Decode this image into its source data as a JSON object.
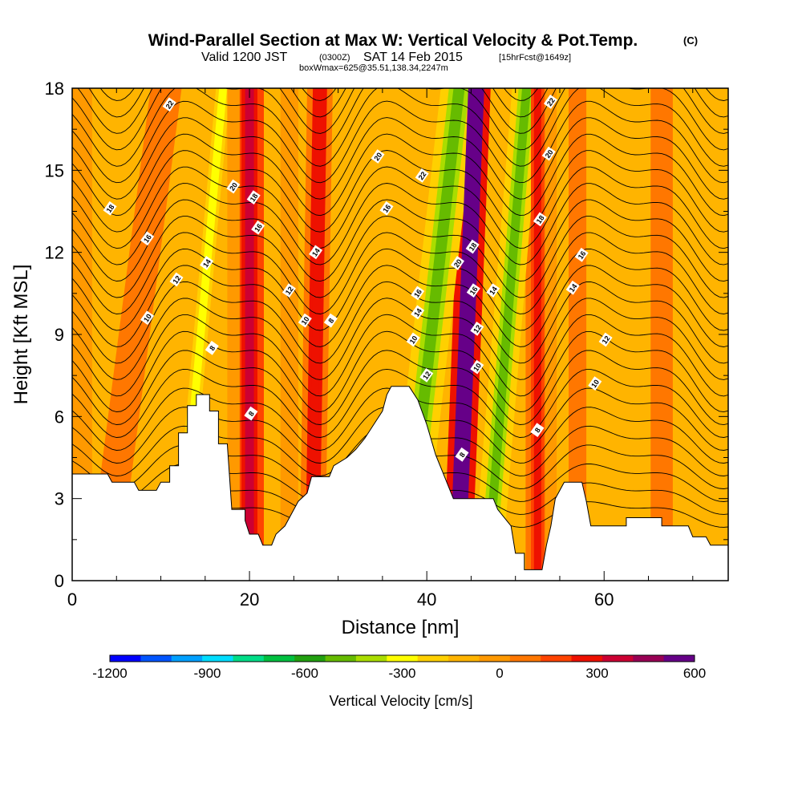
{
  "title": {
    "main": "Wind-Parallel Section at Max W: Vertical Velocity & Pot.Temp.",
    "copyright": "(C)",
    "line2_a": "Valid 1200 JST",
    "line2_b": "(0300Z)",
    "line2_c": "SAT 14 Feb 2015",
    "line2_d": "[15hrFcst@1649z]",
    "line3": "boxWmax=625@35.51,138.34,2247m"
  },
  "chart_data": {
    "type": "heatmap",
    "xlabel": "Distance [nm]",
    "ylabel": "Height [Kft MSL]",
    "xlim": [
      0,
      74
    ],
    "ylim": [
      0,
      18
    ],
    "x_ticks": [
      0,
      20,
      40,
      60
    ],
    "y_ticks": [
      0,
      3,
      6,
      9,
      12,
      15,
      18
    ],
    "x_minor_step": 5,
    "y_minor_step": 1.5,
    "grid": false,
    "terrain_height_kft": [
      {
        "x": 0,
        "h": 3.9
      },
      {
        "x": 4,
        "h": 3.9
      },
      {
        "x": 4.5,
        "h": 3.6
      },
      {
        "x": 7,
        "h": 3.6
      },
      {
        "x": 7.5,
        "h": 3.3
      },
      {
        "x": 9.5,
        "h": 3.3
      },
      {
        "x": 10,
        "h": 3.6
      },
      {
        "x": 11,
        "h": 3.6
      },
      {
        "x": 11,
        "h": 4.2
      },
      {
        "x": 12,
        "h": 4.2
      },
      {
        "x": 12,
        "h": 5.4
      },
      {
        "x": 13,
        "h": 5.4
      },
      {
        "x": 13,
        "h": 6.4
      },
      {
        "x": 14,
        "h": 6.4
      },
      {
        "x": 14,
        "h": 6.8
      },
      {
        "x": 15.5,
        "h": 6.8
      },
      {
        "x": 15.5,
        "h": 6.2
      },
      {
        "x": 16.5,
        "h": 6.2
      },
      {
        "x": 16.5,
        "h": 5.0
      },
      {
        "x": 17.5,
        "h": 5.0
      },
      {
        "x": 18,
        "h": 2.6
      },
      {
        "x": 19.5,
        "h": 2.6
      },
      {
        "x": 19.5,
        "h": 2.2
      },
      {
        "x": 20,
        "h": 1.7
      },
      {
        "x": 21,
        "h": 1.7
      },
      {
        "x": 21.5,
        "h": 1.3
      },
      {
        "x": 22.5,
        "h": 1.3
      },
      {
        "x": 23,
        "h": 1.7
      },
      {
        "x": 24,
        "h": 2.0
      },
      {
        "x": 25,
        "h": 2.6
      },
      {
        "x": 25.5,
        "h": 2.9
      },
      {
        "x": 26.5,
        "h": 3.2
      },
      {
        "x": 27,
        "h": 3.8
      },
      {
        "x": 29,
        "h": 3.8
      },
      {
        "x": 29.5,
        "h": 4.2
      },
      {
        "x": 31,
        "h": 4.5
      },
      {
        "x": 32,
        "h": 4.8
      },
      {
        "x": 33,
        "h": 5.2
      },
      {
        "x": 34,
        "h": 5.7
      },
      {
        "x": 35,
        "h": 6.2
      },
      {
        "x": 35.5,
        "h": 6.8
      },
      {
        "x": 36,
        "h": 7.1
      },
      {
        "x": 38,
        "h": 7.1
      },
      {
        "x": 39,
        "h": 6.6
      },
      {
        "x": 40,
        "h": 5.7
      },
      {
        "x": 41,
        "h": 4.6
      },
      {
        "x": 42,
        "h": 3.8
      },
      {
        "x": 43,
        "h": 3.0
      },
      {
        "x": 47.5,
        "h": 3.0
      },
      {
        "x": 48,
        "h": 2.6
      },
      {
        "x": 49.5,
        "h": 2.0
      },
      {
        "x": 50,
        "h": 1.0
      },
      {
        "x": 51,
        "h": 1.0
      },
      {
        "x": 51,
        "h": 0.4
      },
      {
        "x": 53,
        "h": 0.4
      },
      {
        "x": 53.5,
        "h": 1.3
      },
      {
        "x": 54,
        "h": 2.0
      },
      {
        "x": 54.5,
        "h": 3.0
      },
      {
        "x": 55.5,
        "h": 3.6
      },
      {
        "x": 57.5,
        "h": 3.6
      },
      {
        "x": 58,
        "h": 2.9
      },
      {
        "x": 58.5,
        "h": 2.0
      },
      {
        "x": 62.5,
        "h": 2.0
      },
      {
        "x": 62.5,
        "h": 2.3
      },
      {
        "x": 66.5,
        "h": 2.3
      },
      {
        "x": 66.5,
        "h": 2.0
      },
      {
        "x": 69.5,
        "h": 2.0
      },
      {
        "x": 70,
        "h": 1.6
      },
      {
        "x": 71.5,
        "h": 1.6
      },
      {
        "x": 72,
        "h": 1.3
      },
      {
        "x": 74,
        "h": 1.3
      }
    ],
    "vertical_velocity_bands": [
      {
        "x_center": 1,
        "slope": 0.0,
        "width": 2.5,
        "w": 30
      },
      {
        "x_center": 7,
        "slope": 0.4,
        "width": 3.5,
        "w": 60
      },
      {
        "x_center": 14.5,
        "slope": 0.28,
        "width": 1.6,
        "w": -220
      },
      {
        "x_center": 18.2,
        "slope": 0.0,
        "width": 1.4,
        "w": -60
      },
      {
        "x_center": 20.0,
        "slope": 0.0,
        "width": 1.8,
        "w": 300
      },
      {
        "x_center": 24.5,
        "slope": 0.0,
        "width": 2.0,
        "w": -60
      },
      {
        "x_center": 27.5,
        "slope": 0.05,
        "width": 1.6,
        "w": 250
      },
      {
        "x_center": 31.5,
        "slope": 0.1,
        "width": 2.5,
        "w": -130
      },
      {
        "x_center": 40.5,
        "slope": 0.35,
        "width": 2.3,
        "w": -420
      },
      {
        "x_center": 44.5,
        "slope": 0.12,
        "width": 1.8,
        "w": 620
      },
      {
        "x_center": 49.0,
        "slope": 0.25,
        "width": 1.8,
        "w": -380
      },
      {
        "x_center": 52.5,
        "slope": 0.0,
        "width": 1.5,
        "w": 180
      },
      {
        "x_center": 54.0,
        "slope": 0.0,
        "width": 1.3,
        "w": -40
      },
      {
        "x_center": 57.0,
        "slope": 0.0,
        "width": 2.0,
        "w": 60
      },
      {
        "x_center": 61.0,
        "slope": 0.0,
        "width": 1.5,
        "w": -80
      },
      {
        "x_center": 66.5,
        "slope": 0.0,
        "width": 2.5,
        "w": 70
      },
      {
        "x_center": 71.5,
        "slope": 0.0,
        "width": 1.5,
        "w": -80
      }
    ],
    "isentrope_labels": [
      {
        "x": 11,
        "y": 17.4,
        "value": "22"
      },
      {
        "x": 4.3,
        "y": 13.6,
        "value": "18"
      },
      {
        "x": 8.5,
        "y": 12.5,
        "value": "16"
      },
      {
        "x": 18.2,
        "y": 14.4,
        "value": "20"
      },
      {
        "x": 20.5,
        "y": 14.0,
        "value": "18"
      },
      {
        "x": 21.0,
        "y": 12.9,
        "value": "16"
      },
      {
        "x": 15.2,
        "y": 11.6,
        "value": "14"
      },
      {
        "x": 11.8,
        "y": 11.0,
        "value": "12"
      },
      {
        "x": 8.5,
        "y": 9.6,
        "value": "10"
      },
      {
        "x": 15.8,
        "y": 8.5,
        "value": "8"
      },
      {
        "x": 20.2,
        "y": 6.1,
        "value": "8"
      },
      {
        "x": 27.5,
        "y": 12.0,
        "value": "14"
      },
      {
        "x": 24.5,
        "y": 10.6,
        "value": "12"
      },
      {
        "x": 26.3,
        "y": 9.5,
        "value": "10"
      },
      {
        "x": 29.2,
        "y": 9.5,
        "value": "8"
      },
      {
        "x": 34.5,
        "y": 15.5,
        "value": "20"
      },
      {
        "x": 35.5,
        "y": 13.6,
        "value": "16"
      },
      {
        "x": 39.5,
        "y": 14.8,
        "value": "22"
      },
      {
        "x": 43.5,
        "y": 11.6,
        "value": "20"
      },
      {
        "x": 45.2,
        "y": 12.2,
        "value": "18"
      },
      {
        "x": 39.0,
        "y": 10.5,
        "value": "16"
      },
      {
        "x": 39.0,
        "y": 9.8,
        "value": "14"
      },
      {
        "x": 38.5,
        "y": 8.8,
        "value": "10"
      },
      {
        "x": 40.0,
        "y": 7.5,
        "value": "12"
      },
      {
        "x": 45.3,
        "y": 10.6,
        "value": "16"
      },
      {
        "x": 47.5,
        "y": 10.6,
        "value": "14"
      },
      {
        "x": 45.7,
        "y": 9.2,
        "value": "12"
      },
      {
        "x": 45.7,
        "y": 7.8,
        "value": "10"
      },
      {
        "x": 44.0,
        "y": 4.6,
        "value": "8"
      },
      {
        "x": 52.5,
        "y": 5.5,
        "value": "8"
      },
      {
        "x": 54.0,
        "y": 17.5,
        "value": "22"
      },
      {
        "x": 53.8,
        "y": 15.6,
        "value": "20"
      },
      {
        "x": 52.8,
        "y": 13.2,
        "value": "18"
      },
      {
        "x": 57.5,
        "y": 11.9,
        "value": "16"
      },
      {
        "x": 56.5,
        "y": 10.7,
        "value": "14"
      },
      {
        "x": 60.2,
        "y": 8.8,
        "value": "12"
      },
      {
        "x": 59.0,
        "y": 7.2,
        "value": "10"
      }
    ],
    "colorbar": {
      "label": "Vertical Velocity [cm/s]",
      "tick_labels": [
        "-1200",
        "-900",
        "-600",
        "-300",
        "0",
        "300",
        "600"
      ],
      "colors": [
        "#0000ff",
        "#0055ff",
        "#00a0ff",
        "#00ddff",
        "#00dd88",
        "#00c040",
        "#22a010",
        "#66bb00",
        "#aadd00",
        "#ffff00",
        "#ffd000",
        "#ffb400",
        "#ff9900",
        "#ff7700",
        "#ff4400",
        "#ee1100",
        "#cc0033",
        "#990055",
        "#660088"
      ]
    }
  }
}
